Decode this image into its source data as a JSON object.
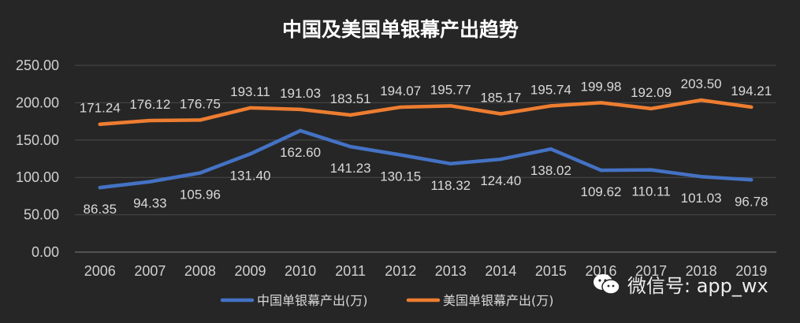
{
  "chart_data": {
    "type": "line",
    "title": "中国及美国单银幕产出趋势",
    "categories": [
      "2006",
      "2007",
      "2008",
      "2009",
      "2010",
      "2011",
      "2012",
      "2013",
      "2014",
      "2015",
      "2016",
      "2017",
      "2018",
      "2019"
    ],
    "ylim": [
      0,
      250
    ],
    "yticks": [
      "0.00",
      "50.00",
      "100.00",
      "150.00",
      "200.00",
      "250.00"
    ],
    "grid": true,
    "legend_position": "bottom",
    "series": [
      {
        "name": "中国单银幕产出(万)",
        "color": "#4472C4",
        "values": [
          86.35,
          94.33,
          105.96,
          131.4,
          162.6,
          141.23,
          130.15,
          118.32,
          124.4,
          138.02,
          109.62,
          110.11,
          101.03,
          96.78
        ],
        "labels": [
          "86.35",
          "94.33",
          "105.96",
          "131.40",
          "162.60",
          "141.23",
          "130.15",
          "118.32",
          "124.40",
          "138.02",
          "109.62",
          "110.11",
          "101.03",
          "96.78"
        ]
      },
      {
        "name": "美国单银幕产出(万)",
        "color": "#ED7D31",
        "values": [
          171.24,
          176.12,
          176.75,
          193.11,
          191.03,
          183.51,
          194.07,
          195.77,
          185.17,
          195.74,
          199.98,
          192.09,
          203.5,
          194.21
        ],
        "labels": [
          "171.24",
          "176.12",
          "176.75",
          "193.11",
          "191.03",
          "183.51",
          "194.07",
          "195.77",
          "185.17",
          "195.74",
          "199.98",
          "192.09",
          "203.50",
          "194.21"
        ]
      }
    ]
  },
  "watermark": {
    "text": "微信号: app_wx",
    "icon": "wechat-icon"
  }
}
